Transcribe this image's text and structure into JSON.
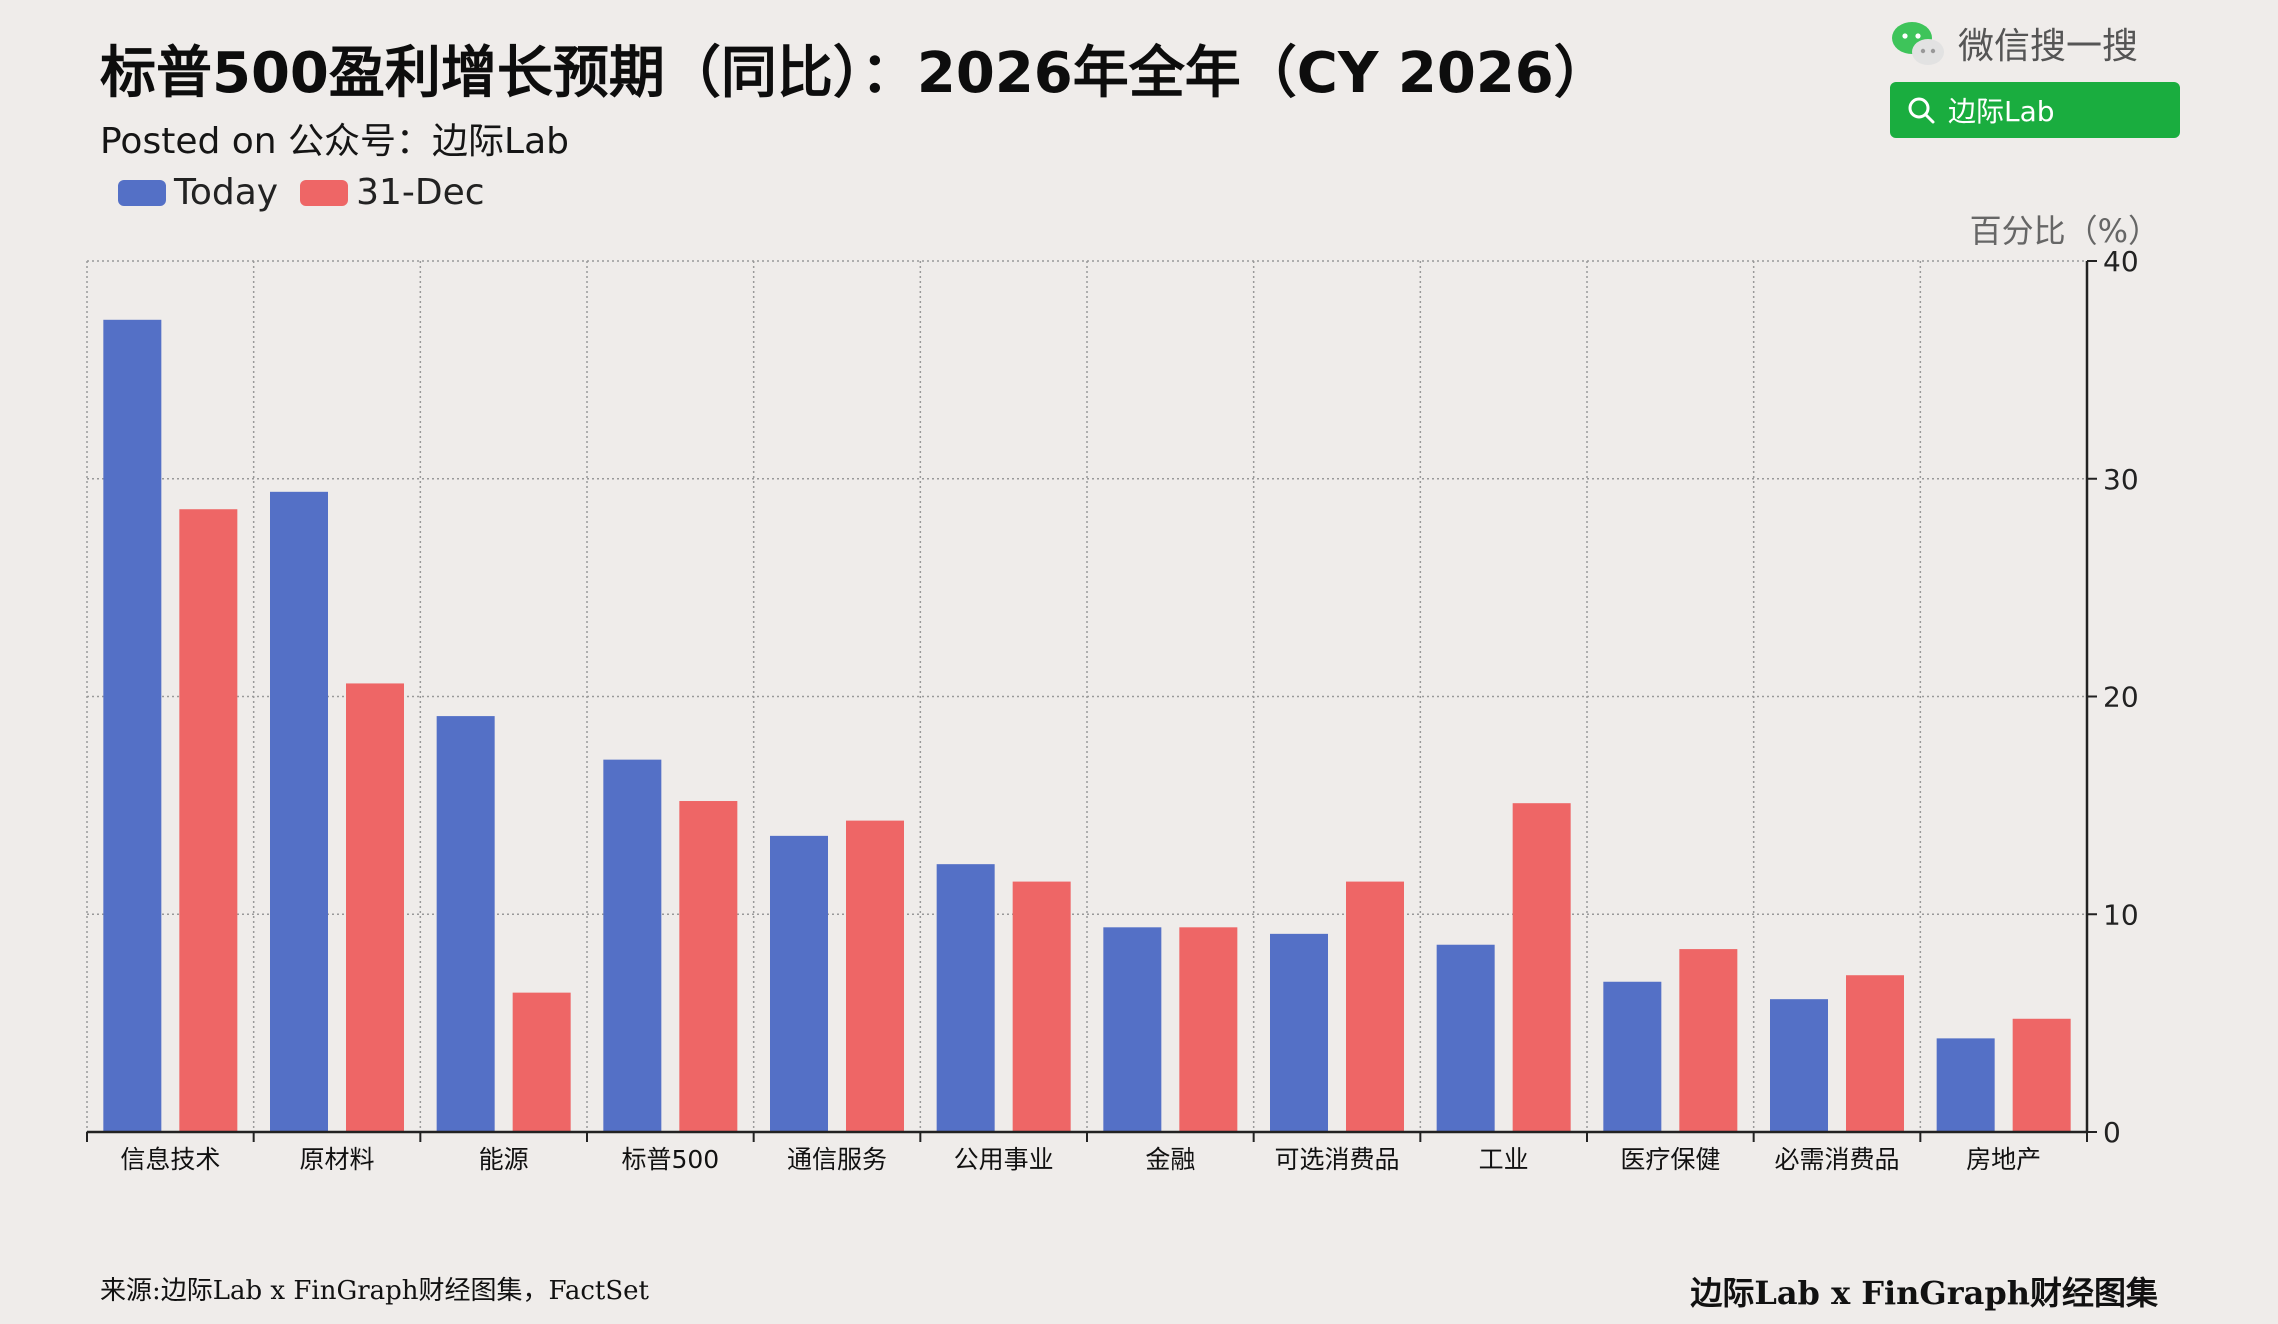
{
  "header": {
    "title": "标普500盈利增长预期（同比）：2026年全年（CY 2026）",
    "subtitle": "Posted on 公众号：边际Lab"
  },
  "wechat": {
    "label": "微信搜一搜",
    "search_text": "边际Lab",
    "accent": "#1aad3f"
  },
  "footer": {
    "source": "来源:边际Lab x FinGraph财经图集，FactSet",
    "brand": "边际Lab x FinGraph财经图集"
  },
  "chart_data": {
    "type": "bar",
    "title": "标普500盈利增长预期（同比）：2026年全年（CY 2026）",
    "ylabel": "百分比（%）",
    "ylim": [
      0,
      40
    ],
    "yticks": [
      "0",
      "10",
      "20",
      "30",
      "40"
    ],
    "grid": true,
    "legend_position": "top-left",
    "categories": [
      "信息技术",
      "原材料",
      "能源",
      "标普500",
      "通信服务",
      "公用事业",
      "金融",
      "可选消费品",
      "工业",
      "医疗保健",
      "必需消费品",
      "房地产"
    ],
    "series": [
      {
        "name": "Today",
        "color": "#5470c6",
        "values": [
          37.3,
          29.4,
          19.1,
          17.1,
          13.6,
          12.3,
          9.4,
          9.1,
          8.6,
          6.9,
          6.1,
          4.3
        ]
      },
      {
        "name": "31-Dec",
        "color": "#ee6666",
        "values": [
          28.6,
          20.6,
          6.4,
          15.2,
          14.3,
          11.5,
          9.4,
          11.5,
          15.1,
          8.4,
          7.2,
          5.2
        ]
      }
    ]
  }
}
